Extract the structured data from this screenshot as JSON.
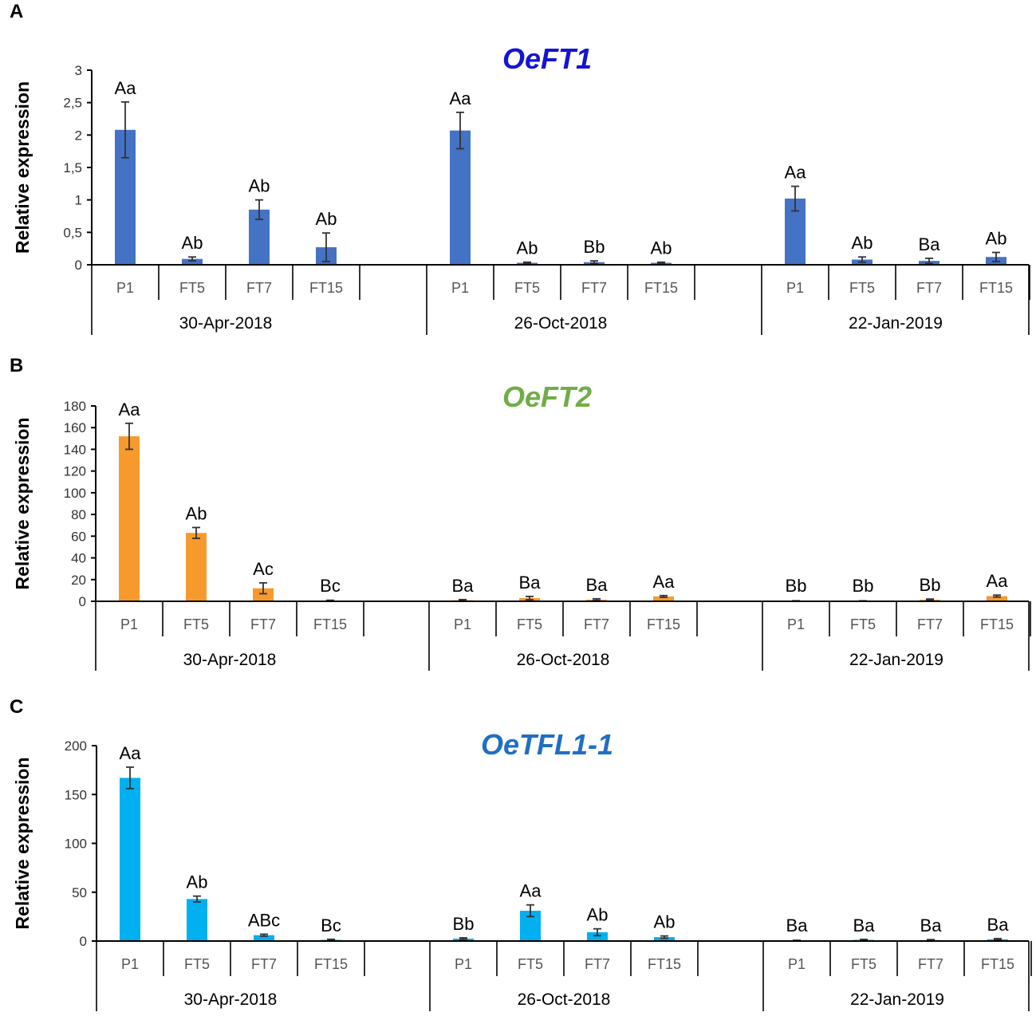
{
  "chart_data": [
    {
      "type": "bar",
      "panel": "A",
      "title": "OeFT1",
      "title_color": "#1414d4",
      "bar_color": "#4472c4",
      "ylabel": "Relative expression",
      "xlabel": "",
      "ylim": [
        0,
        3
      ],
      "yticks": [
        "0",
        "0,5",
        "1",
        "1,5",
        "2",
        "2,5",
        "3"
      ],
      "ytick_values": [
        0,
        0.5,
        1,
        1.5,
        2,
        2.5,
        3
      ],
      "dates": [
        "30-Apr-2018",
        "26-Oct-2018",
        "22-Jan-2019"
      ],
      "categories": [
        "P1",
        "FT5",
        "FT7",
        "FT15"
      ],
      "groups": [
        {
          "date": "30-Apr-2018",
          "values": [
            2.08,
            0.09,
            0.85,
            0.27
          ],
          "errors": [
            0.43,
            0.03,
            0.15,
            0.22
          ],
          "letters": [
            "Aa",
            "Ab",
            "Ab",
            "Ab"
          ]
        },
        {
          "date": "26-Oct-2018",
          "values": [
            2.07,
            0.03,
            0.04,
            0.03
          ],
          "errors": [
            0.28,
            0.01,
            0.02,
            0.01
          ],
          "letters": [
            "Aa",
            "Ab",
            "Bb",
            "Ab"
          ]
        },
        {
          "date": "22-Jan-2019",
          "values": [
            1.02,
            0.08,
            0.06,
            0.12
          ],
          "errors": [
            0.19,
            0.04,
            0.04,
            0.07
          ],
          "letters": [
            "Aa",
            "Ab",
            "Ba",
            "Ab"
          ]
        }
      ]
    },
    {
      "type": "bar",
      "panel": "B",
      "title": "OeFT2",
      "title_color": "#70ad47",
      "bar_color": "#f79a2e",
      "ylabel": "Relative expression",
      "xlabel": "",
      "ylim": [
        0,
        180
      ],
      "yticks": [
        "0",
        "20",
        "40",
        "60",
        "80",
        "100",
        "120",
        "140",
        "160",
        "180"
      ],
      "ytick_values": [
        0,
        20,
        40,
        60,
        80,
        100,
        120,
        140,
        160,
        180
      ],
      "dates": [
        "30-Apr-2018",
        "26-Oct-2018",
        "22-Jan-2019"
      ],
      "categories": [
        "P1",
        "FT5",
        "FT7",
        "FT15"
      ],
      "groups": [
        {
          "date": "30-Apr-2018",
          "values": [
            152,
            63,
            12,
            0.5
          ],
          "errors": [
            12,
            5,
            5,
            0.5
          ],
          "letters": [
            "Aa",
            "Ab",
            "Ac",
            "Bc"
          ]
        },
        {
          "date": "26-Oct-2018",
          "values": [
            1,
            3,
            1.5,
            4.5
          ],
          "errors": [
            0.6,
            1.5,
            0.8,
            0.8
          ],
          "letters": [
            "Ba",
            "Ba",
            "Ba",
            "Aa"
          ]
        },
        {
          "date": "22-Jan-2019",
          "values": [
            0.3,
            0.3,
            1.5,
            4.8
          ],
          "errors": [
            0.2,
            0.2,
            0.6,
            0.9
          ],
          "letters": [
            "Bb",
            "Bb",
            "Bb",
            "Aa"
          ]
        }
      ]
    },
    {
      "type": "bar",
      "panel": "C",
      "title": "OeTFL1-1",
      "title_color": "#1f6fc2",
      "bar_color": "#00b0f0",
      "ylabel": "Relative expression",
      "xlabel": "",
      "ylim": [
        0,
        200
      ],
      "yticks": [
        "0",
        "50",
        "100",
        "150",
        "200"
      ],
      "ytick_values": [
        0,
        50,
        100,
        150,
        200
      ],
      "dates": [
        "30-Apr-2018",
        "26-Oct-2018",
        "22-Jan-2019"
      ],
      "categories": [
        "P1",
        "FT5",
        "FT7",
        "FT15"
      ],
      "groups": [
        {
          "date": "30-Apr-2018",
          "values": [
            167,
            43,
            6,
            1.2
          ],
          "errors": [
            11,
            3,
            1,
            0.6
          ],
          "letters": [
            "Aa",
            "Ab",
            "ABc",
            "Bc"
          ]
        },
        {
          "date": "26-Oct-2018",
          "values": [
            2.5,
            31,
            9,
            4
          ],
          "errors": [
            0.8,
            6,
            3.5,
            1.2
          ],
          "letters": [
            "Bb",
            "Aa",
            "Ab",
            "Ab"
          ]
        },
        {
          "date": "22-Jan-2019",
          "values": [
            0.5,
            1.2,
            1,
            1.8
          ],
          "errors": [
            0.3,
            0.5,
            0.5,
            0.7
          ],
          "letters": [
            "Ba",
            "Ba",
            "Ba",
            "Ba"
          ]
        }
      ]
    }
  ]
}
